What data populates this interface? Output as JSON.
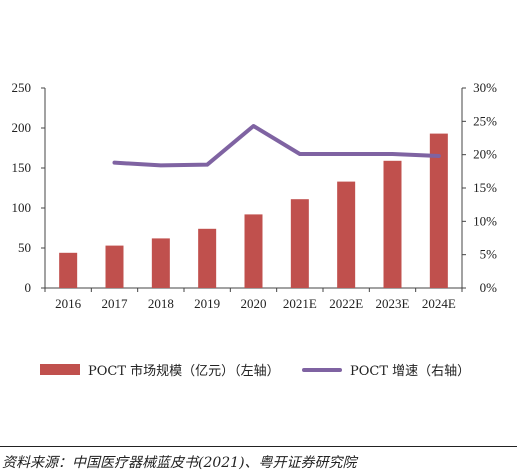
{
  "chart_data": {
    "type": "bar+line",
    "categories": [
      "2016",
      "2017",
      "2018",
      "2019",
      "2020",
      "2021E",
      "2022E",
      "2023E",
      "2024E"
    ],
    "series": [
      {
        "name": "POCT 市场规模（亿元）（左轴）",
        "type": "bar",
        "axis": "left",
        "color": "#c0504d",
        "values": [
          44,
          53,
          62,
          74,
          92,
          111,
          133,
          159,
          193
        ]
      },
      {
        "name": "POCT 增速（右轴）",
        "type": "line",
        "axis": "right",
        "color": "#7f63a2",
        "values": [
          null,
          18.8,
          18.4,
          18.5,
          24.3,
          20.1,
          20.1,
          20.1,
          19.8
        ]
      }
    ],
    "y_left": {
      "ticks": [
        "0",
        "50",
        "100",
        "150",
        "200",
        "250"
      ],
      "ylim": [
        0,
        250
      ]
    },
    "y_right": {
      "ticks": [
        "0%",
        "5%",
        "10%",
        "15%",
        "20%",
        "25%",
        "30%"
      ],
      "ylim": [
        0,
        30
      ]
    },
    "legend_position": "bottom",
    "grid": false
  },
  "source": "资料来源：中国医疗器械蓝皮书(2021)、粤开证券研究院"
}
